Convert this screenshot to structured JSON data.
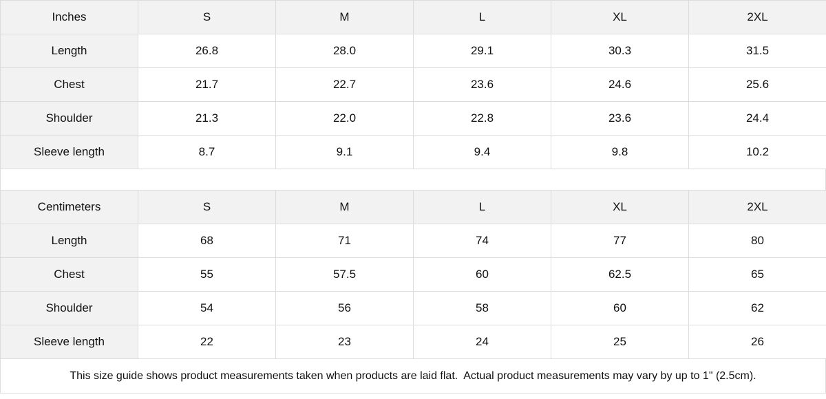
{
  "tables": [
    {
      "unit": "Inches",
      "sizes": [
        "S",
        "M",
        "L",
        "XL",
        "2XL"
      ],
      "rows": [
        {
          "label": "Length",
          "values": [
            "26.8",
            "28.0",
            "29.1",
            "30.3",
            "31.5"
          ]
        },
        {
          "label": "Chest",
          "values": [
            "21.7",
            "22.7",
            "23.6",
            "24.6",
            "25.6"
          ]
        },
        {
          "label": "Shoulder",
          "values": [
            "21.3",
            "22.0",
            "22.8",
            "23.6",
            "24.4"
          ]
        },
        {
          "label": "Sleeve length",
          "values": [
            "8.7",
            "9.1",
            "9.4",
            "9.8",
            "10.2"
          ]
        }
      ]
    },
    {
      "unit": "Centimeters",
      "sizes": [
        "S",
        "M",
        "L",
        "XL",
        "2XL"
      ],
      "rows": [
        {
          "label": "Length",
          "values": [
            "68",
            "71",
            "74",
            "77",
            "80"
          ]
        },
        {
          "label": "Chest",
          "values": [
            "55",
            "57.5",
            "60",
            "62.5",
            "65"
          ]
        },
        {
          "label": "Shoulder",
          "values": [
            "54",
            "56",
            "58",
            "60",
            "62"
          ]
        },
        {
          "label": "Sleeve length",
          "values": [
            "22",
            "23",
            "24",
            "25",
            "26"
          ]
        }
      ]
    }
  ],
  "note": "This size guide shows product measurements taken when products are laid flat.  Actual product measurements may vary by up to 1\" (2.5cm).",
  "colors": {
    "header_bg": "#f2f2f2",
    "border": "#dcdcdc"
  }
}
